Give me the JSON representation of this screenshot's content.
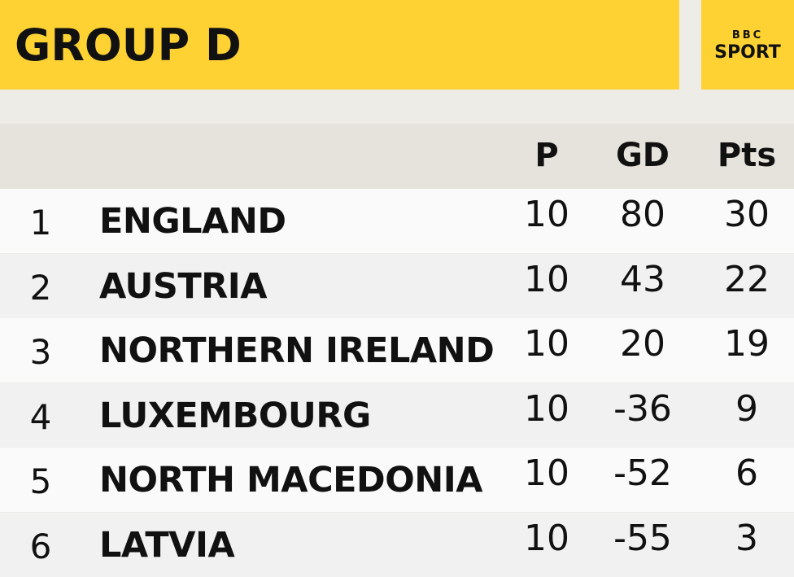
{
  "header": {
    "title": "GROUP D",
    "logo_top": "BBC",
    "logo_bottom": "SPORT"
  },
  "table": {
    "columns": [
      "P",
      "GD",
      "Pts"
    ],
    "rows": [
      [
        "1",
        "ENGLAND",
        "10",
        "80",
        "30"
      ],
      [
        "2",
        "AUSTRIA",
        "10",
        "43",
        "22"
      ],
      [
        "3",
        "NORTHERN IRELAND",
        "10",
        "20",
        "19"
      ],
      [
        "4",
        "LUXEMBOURG",
        "10",
        "-36",
        "9"
      ],
      [
        "5",
        "NORTH MACEDONIA",
        "10",
        "-52",
        "6"
      ],
      [
        "6",
        "LATVIA",
        "10",
        "-55",
        "3"
      ]
    ]
  }
}
